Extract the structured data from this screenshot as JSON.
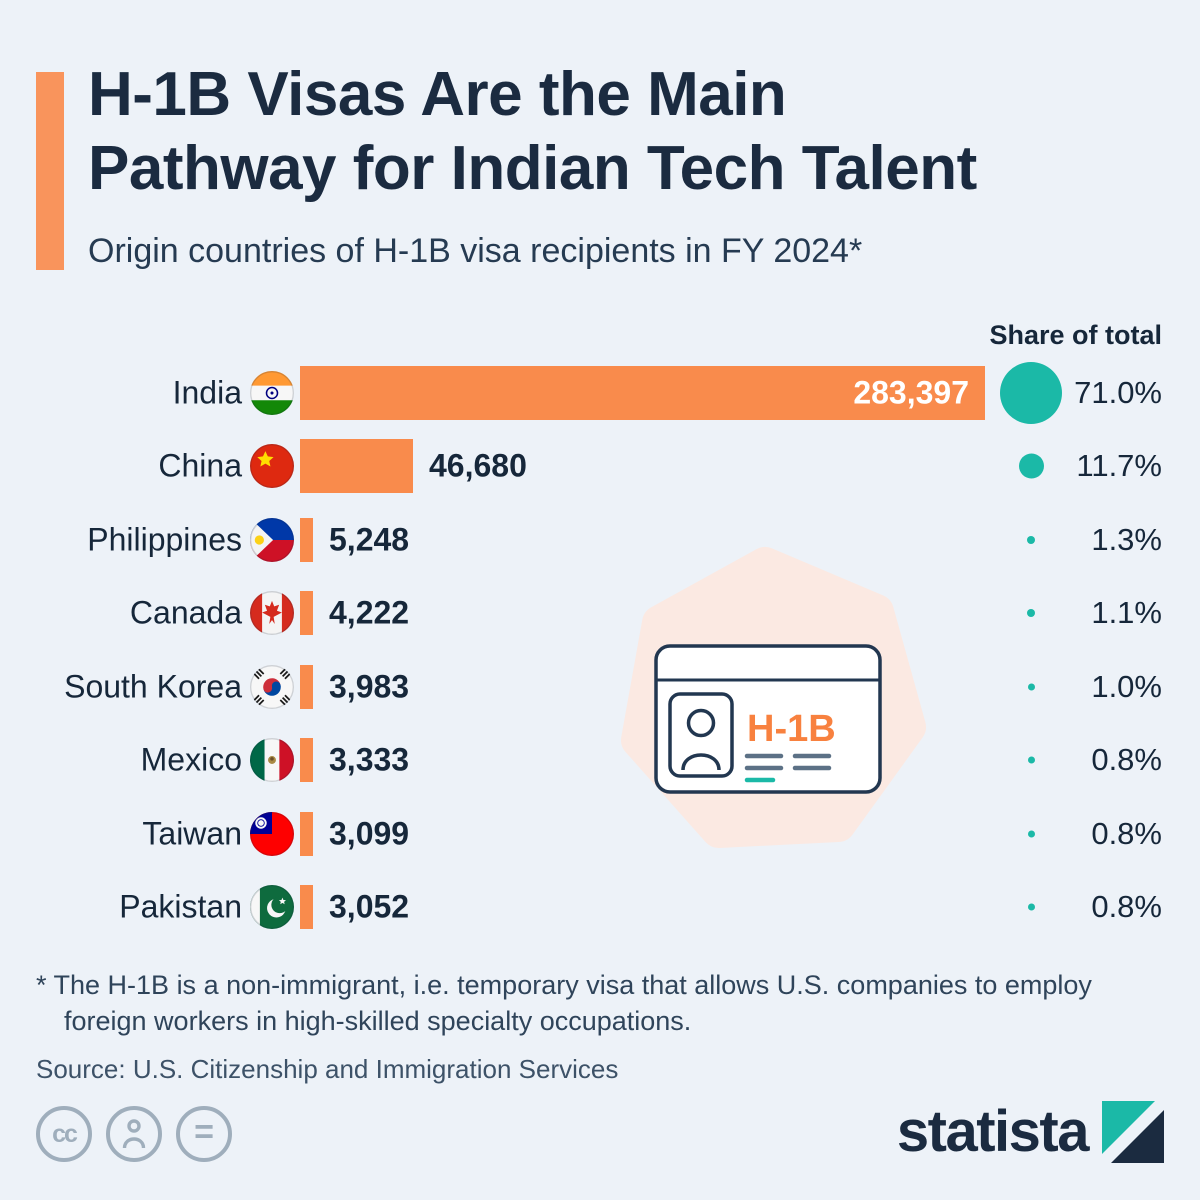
{
  "header": {
    "title_line1": "H-1B Visas Are the Main",
    "title_line2": "Pathway for Indian Tech Talent",
    "subtitle": "Origin countries of H-1B visa recipients in FY 2024*"
  },
  "chart_data": {
    "type": "bar",
    "orientation": "horizontal",
    "title": "Origin countries of H-1B visa recipients in FY 2024",
    "share_column_header": "Share of total",
    "max_value": 283397,
    "rows": [
      {
        "country": "India",
        "flag": "flag-india",
        "value": 283397,
        "value_label": "283,397",
        "share_pct": 71.0,
        "share_label": "71.0%"
      },
      {
        "country": "China",
        "flag": "flag-china",
        "value": 46680,
        "value_label": "46,680",
        "share_pct": 11.7,
        "share_label": "11.7%"
      },
      {
        "country": "Philippines",
        "flag": "flag-philippines",
        "value": 5248,
        "value_label": "5,248",
        "share_pct": 1.3,
        "share_label": "1.3%"
      },
      {
        "country": "Canada",
        "flag": "flag-canada",
        "value": 4222,
        "value_label": "4,222",
        "share_pct": 1.1,
        "share_label": "1.1%"
      },
      {
        "country": "South Korea",
        "flag": "flag-south-korea",
        "value": 3983,
        "value_label": "3,983",
        "share_pct": 1.0,
        "share_label": "1.0%"
      },
      {
        "country": "Mexico",
        "flag": "flag-mexico",
        "value": 3333,
        "value_label": "3,333",
        "share_pct": 0.8,
        "share_label": "0.8%"
      },
      {
        "country": "Taiwan",
        "flag": "flag-taiwan",
        "value": 3099,
        "value_label": "3,099",
        "share_pct": 0.8,
        "share_label": "0.8%"
      },
      {
        "country": "Pakistan",
        "flag": "flag-pakistan",
        "value": 3052,
        "value_label": "3,052",
        "share_pct": 0.8,
        "share_label": "0.8%"
      }
    ]
  },
  "illustration": {
    "badge_text": "H-1B"
  },
  "footer": {
    "footnote_line1": "* The H-1B is a non-immigrant, i.e. temporary visa that allows U.S. companies to employ",
    "footnote_line2": "foreign workers in high-skilled specialty occupations.",
    "source": "Source: U.S. Citizenship and Immigration Services",
    "logo_text": "statista"
  },
  "license_icons": [
    "creative-commons",
    "attribution",
    "no-derivatives"
  ],
  "colors": {
    "background": "#EDF2F8",
    "bar": "#F98B4C",
    "accent": "#F9945C",
    "teal": "#1BB9A7",
    "navy": "#1B2B40",
    "blob": "#FBE9E2"
  }
}
